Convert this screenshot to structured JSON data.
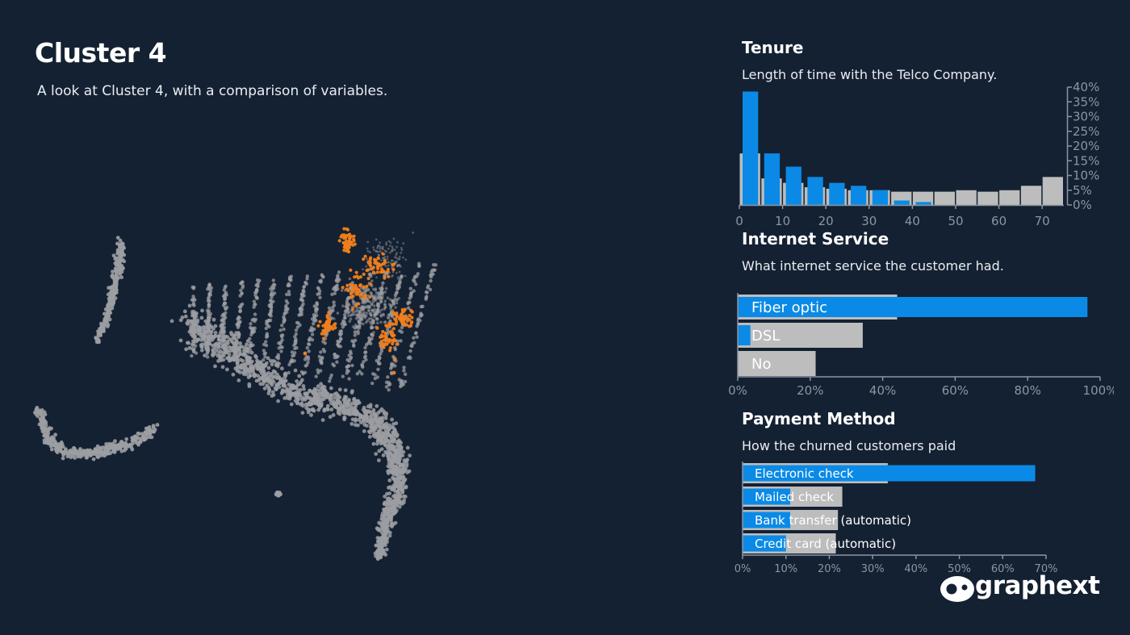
{
  "page": {
    "title": "Cluster 4",
    "subtitle": "A look at Cluster 4, with a comparison of variables."
  },
  "brand": {
    "name": "graphext"
  },
  "colors": {
    "background": "#142132",
    "highlight": "#0a8ae6",
    "baseline": "#bdbdbd",
    "cluster_point": "#f07e1c",
    "other_point": "#9c9ea2",
    "axis": "#8c95a2"
  },
  "chart_data": [
    {
      "id": "tenure",
      "type": "bar",
      "title": "Tenure",
      "subtitle": "Length of time with the Telco Company.",
      "bins_start": [
        0,
        5,
        10,
        15,
        20,
        25,
        30,
        35,
        40,
        45,
        50,
        55,
        60,
        65,
        70
      ],
      "bin_width": 5,
      "series": [
        {
          "role": "cluster",
          "values": [
            38.5,
            17.5,
            13,
            9.5,
            7.5,
            6.5,
            5,
            1.5,
            1,
            0,
            0,
            0,
            0,
            0,
            0
          ]
        },
        {
          "role": "population",
          "values": [
            17.5,
            9,
            7.5,
            6,
            5.5,
            5,
            5,
            4.5,
            4.5,
            4.5,
            5,
            4.5,
            5,
            6.5,
            9.5
          ]
        }
      ],
      "xticks": [
        0,
        10,
        20,
        30,
        40,
        50,
        60,
        70
      ],
      "xlim": [
        0,
        75
      ],
      "ylim": [
        0,
        40
      ],
      "yticks": [
        "0%",
        "5%",
        "10%",
        "15%",
        "20%",
        "25%",
        "30%",
        "35%",
        "40%"
      ],
      "y_axis_side": "right"
    },
    {
      "id": "internet_service",
      "type": "bar",
      "orientation": "horizontal",
      "title": "Internet Service",
      "subtitle": "What internet service the customer had.",
      "categories": [
        "Fiber optic",
        "DSL",
        "No"
      ],
      "series": [
        {
          "role": "population",
          "values": [
            44,
            34.5,
            21.5
          ]
        },
        {
          "role": "cluster",
          "values": [
            96.5,
            3.5,
            0
          ]
        }
      ],
      "xlim": [
        0,
        100
      ],
      "xticks": [
        "0%",
        "20%",
        "40%",
        "60%",
        "80%",
        "100%"
      ]
    },
    {
      "id": "payment_method",
      "type": "bar",
      "orientation": "horizontal",
      "title": "Payment Method",
      "subtitle": "How the churned customers paid",
      "categories": [
        "Electronic check",
        "Mailed check",
        "Bank transfer (automatic)",
        "Credit card (automatic)"
      ],
      "series": [
        {
          "role": "population",
          "values": [
            33.5,
            23,
            22,
            21.5
          ]
        },
        {
          "role": "cluster",
          "values": [
            67.5,
            11,
            11,
            10
          ]
        }
      ],
      "xlim": [
        0,
        70
      ],
      "xticks": [
        "0%",
        "10%",
        "20%",
        "30%",
        "40%",
        "50%",
        "60%",
        "70%"
      ]
    }
  ]
}
